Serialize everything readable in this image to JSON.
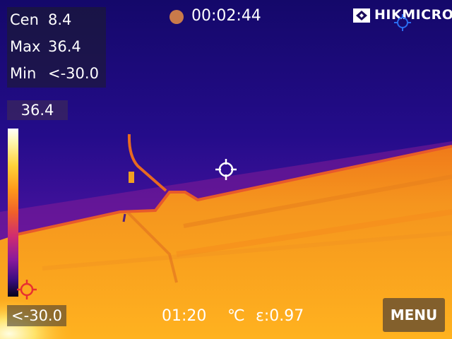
{
  "readings": {
    "cen_label": "Cen",
    "cen_value": "8.4",
    "max_label": "Max",
    "max_value": "36.4",
    "min_label": "Min",
    "min_value": "<-30.0"
  },
  "scale": {
    "max": "36.4",
    "min": "<-30.0"
  },
  "header": {
    "timer": "00:02:44",
    "brand": "HIKMICRO"
  },
  "footer": {
    "time": "01:20",
    "unit": "℃",
    "emissivity": "ε:0.97",
    "menu_label": "MENU"
  },
  "icons": {
    "center_crosshair": "crosshair-icon",
    "cold_spot": "cold-spot-icon",
    "hot_spot": "hot-spot-icon",
    "record": "record-dot-icon"
  },
  "colors": {
    "record_dot": "#c97a4a",
    "cold_marker": "#e83030",
    "hot_marker": "#2a6cf0"
  }
}
